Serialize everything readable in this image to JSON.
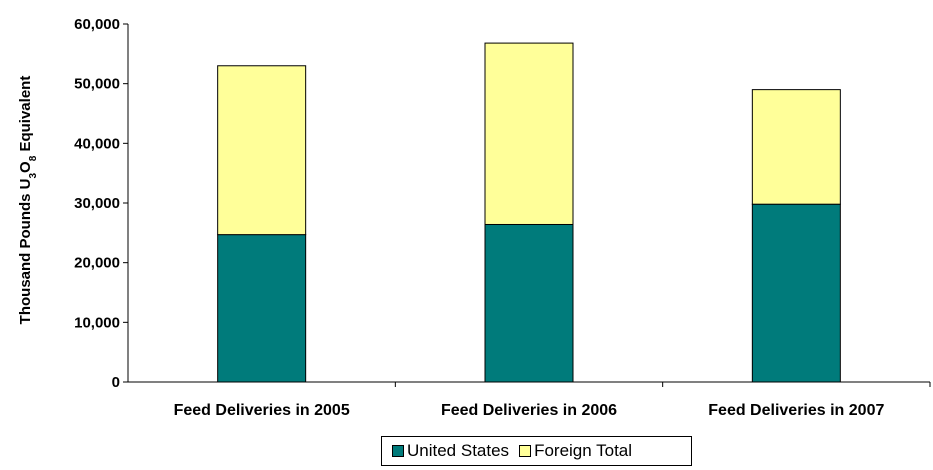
{
  "chart_data": {
    "type": "bar",
    "stacked": true,
    "title": "",
    "xlabel": "",
    "ylabel": "Thousand Pounds U3O8 Equivalent",
    "ylabel_parts": {
      "pre": "Thousand Pounds U",
      "sub1": "3",
      "mid": "O",
      "sub2": "8",
      "post": " Equivalent"
    },
    "categories": [
      "Feed Deliveries in 2005",
      "Feed Deliveries in 2006",
      "Feed Deliveries in 2007"
    ],
    "series": [
      {
        "name": "United States",
        "color": "#007b7b",
        "values": [
          24700,
          26400,
          29800
        ]
      },
      {
        "name": "Foreign Total",
        "color": "#ffff99",
        "values": [
          28300,
          30400,
          19200
        ]
      }
    ],
    "ylim": [
      0,
      60000
    ],
    "yticks": [
      0,
      10000,
      20000,
      30000,
      40000,
      50000,
      60000
    ],
    "ytick_labels": [
      "0",
      "10,000",
      "20,000",
      "30,000",
      "40,000",
      "50,000",
      "60,000"
    ],
    "grid": false,
    "legend_position": "bottom"
  }
}
